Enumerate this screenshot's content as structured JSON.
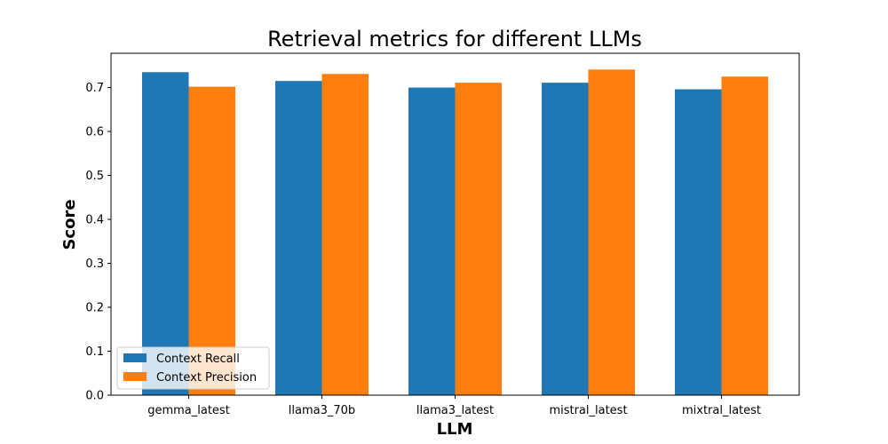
{
  "chart_data": {
    "type": "bar",
    "title": "Retrieval metrics for different LLMs",
    "xlabel": "LLM",
    "ylabel": "Score",
    "categories": [
      "gemma_latest",
      "llama3_70b",
      "llama3_latest",
      "mistral_latest",
      "mixtral_latest"
    ],
    "series": [
      {
        "name": "Context Recall",
        "color": "#1f77b4",
        "values": [
          0.735,
          0.715,
          0.7,
          0.711,
          0.696
        ]
      },
      {
        "name": "Context Precision",
        "color": "#ff7f0e",
        "values": [
          0.702,
          0.731,
          0.711,
          0.741,
          0.725
        ]
      }
    ],
    "ylim": [
      0,
      0.778
    ],
    "yticks": [
      0.0,
      0.1,
      0.2,
      0.3,
      0.4,
      0.5,
      0.6,
      0.7
    ],
    "ytick_labels": [
      "0.0",
      "0.1",
      "0.2",
      "0.3",
      "0.4",
      "0.5",
      "0.6",
      "0.7"
    ],
    "grid": false,
    "legend_position": "lower-left"
  }
}
